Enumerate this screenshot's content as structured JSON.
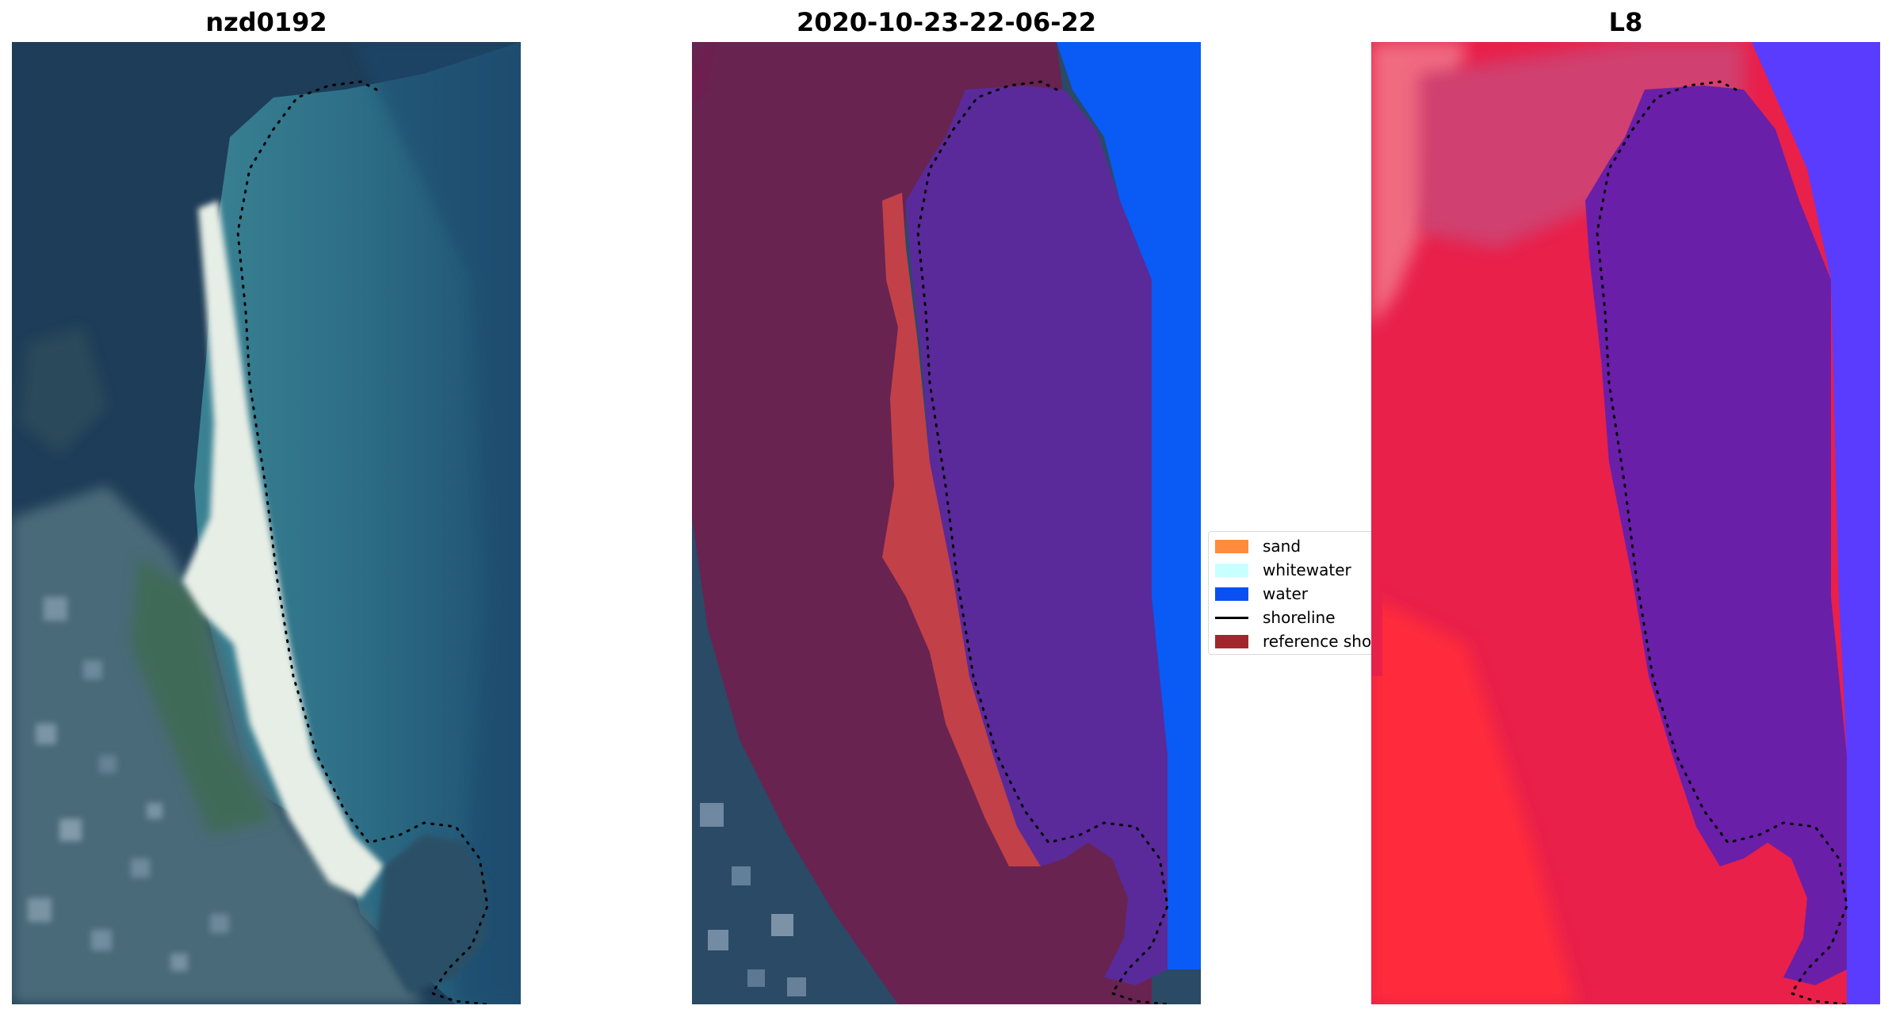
{
  "panels": {
    "rgb": {
      "title": "nzd0192"
    },
    "classified": {
      "title": "2020-10-23-22-06-22"
    },
    "index": {
      "title": "L8"
    }
  },
  "legend": {
    "items": [
      {
        "label": "sand",
        "color": "#ff8c3c",
        "kind": "patch"
      },
      {
        "label": "whitewater",
        "color": "#c8ffff",
        "kind": "patch"
      },
      {
        "label": "water",
        "color": "#0a50f0",
        "kind": "patch"
      },
      {
        "label": "shoreline",
        "color": "#000000",
        "kind": "line"
      },
      {
        "label": "reference shoreline",
        "color": "#a0282d",
        "kind": "patch"
      }
    ]
  },
  "colors": {
    "ocean": "#2f6f87",
    "open_water": "#0a5af5",
    "land_dark": "#1f3a52",
    "vegetation": "#3b5a62",
    "beach_sand": "#dfe7df",
    "buffer_overlay": "#6e1f4f",
    "classified_water": "#5a2a9a",
    "classified_sand": "#c24048",
    "index_land": "#d81a4a",
    "index_water": "#6a1fa8",
    "index_open_water": "#5a3cff"
  }
}
